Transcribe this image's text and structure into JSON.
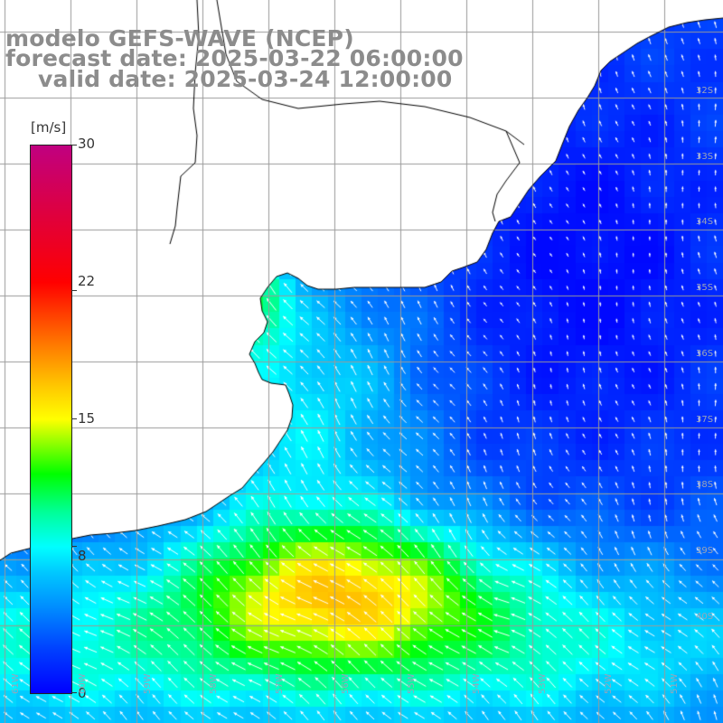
{
  "title": {
    "line1": "modelo GEFS-WAVE (NCEP)",
    "line2": "forecast date: 2025-03-22 06:00:00",
    "line3": "valid date: 2025-03-24 12:00:00"
  },
  "colorbar": {
    "unit": "[m/s]",
    "ticks": [
      "30",
      "22",
      "15",
      "8",
      "0"
    ],
    "tick_values": [
      30,
      22,
      15,
      8,
      0
    ],
    "min": 0,
    "max": 30
  },
  "grid": {
    "lat_labels": [
      "32S",
      "33S",
      "34S",
      "35S",
      "36S",
      "37S",
      "38S",
      "39S",
      "40S"
    ],
    "lon_labels": [
      "61W",
      "60W",
      "59W",
      "58W",
      "57W",
      "56W",
      "55W",
      "54W",
      "53W",
      "52W",
      "51W"
    ]
  },
  "colors": {
    "title": "#8c8c8c",
    "grid": "#9a9a9a",
    "coast": "#000000",
    "arrow": "#ffffff",
    "land": "#ffffff"
  }
}
